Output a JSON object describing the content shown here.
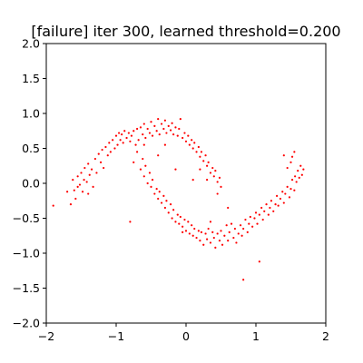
{
  "chart_data": {
    "type": "scatter",
    "title": "[failure] iter 300, learned threshold=0.200",
    "xlabel": "",
    "ylabel": "",
    "xlim": [
      -2,
      2
    ],
    "ylim": [
      -2,
      2
    ],
    "xticks": [
      -2,
      -1,
      0,
      1,
      2
    ],
    "xtick_labels": [
      "−2",
      "−1",
      "0",
      "1",
      "2"
    ],
    "yticks": [
      -2.0,
      -1.5,
      -1.0,
      -0.5,
      0.0,
      0.5,
      1.0,
      1.5,
      2.0
    ],
    "ytick_labels": [
      "−2.0",
      "−1.5",
      "−1.0",
      "−0.5",
      "0.0",
      "0.5",
      "1.0",
      "1.5",
      "2.0"
    ],
    "grid": false,
    "legend": false,
    "point_color": "#ff0000",
    "series": [
      {
        "values": [
          [
            -1.9,
            -0.32
          ],
          [
            -1.7,
            -0.12
          ],
          [
            -1.65,
            -0.3
          ],
          [
            -1.62,
            0.05
          ],
          [
            -1.6,
            -0.1
          ],
          [
            -1.58,
            -0.22
          ],
          [
            -1.55,
            -0.05
          ],
          [
            -1.55,
            0.1
          ],
          [
            -1.52,
            -0.02
          ],
          [
            -1.5,
            0.15
          ],
          [
            -1.48,
            -0.12
          ],
          [
            -1.46,
            0.05
          ],
          [
            -1.45,
            0.22
          ],
          [
            -1.42,
            0.02
          ],
          [
            -1.4,
            -0.15
          ],
          [
            -1.4,
            0.28
          ],
          [
            -1.38,
            0.12
          ],
          [
            -1.35,
            0.2
          ],
          [
            -1.33,
            -0.05
          ],
          [
            -1.3,
            0.35
          ],
          [
            -1.28,
            0.15
          ],
          [
            -1.25,
            0.42
          ],
          [
            -1.22,
            0.3
          ],
          [
            -1.2,
            0.48
          ],
          [
            -1.18,
            0.22
          ],
          [
            -1.15,
            0.52
          ],
          [
            -1.12,
            0.4
          ],
          [
            -1.1,
            0.58
          ],
          [
            -1.08,
            0.45
          ],
          [
            -1.05,
            0.62
          ],
          [
            -1.02,
            0.5
          ],
          [
            -1.0,
            0.68
          ],
          [
            -0.98,
            0.55
          ],
          [
            -0.96,
            0.72
          ],
          [
            -0.94,
            0.62
          ],
          [
            -0.92,
            0.7
          ],
          [
            -0.9,
            0.58
          ],
          [
            -0.88,
            0.75
          ],
          [
            -0.85,
            0.65
          ],
          [
            -0.82,
            0.72
          ],
          [
            -0.8,
            0.6
          ],
          [
            -0.78,
            0.68
          ],
          [
            -0.75,
            0.75
          ],
          [
            -0.72,
            0.55
          ],
          [
            -0.7,
            0.78
          ],
          [
            -0.68,
            0.62
          ],
          [
            -0.65,
            0.8
          ],
          [
            -0.62,
            0.7
          ],
          [
            -0.6,
            0.85
          ],
          [
            -0.58,
            0.65
          ],
          [
            -0.55,
            0.78
          ],
          [
            -0.52,
            0.72
          ],
          [
            -0.5,
            0.88
          ],
          [
            -0.48,
            0.68
          ],
          [
            -0.45,
            0.82
          ],
          [
            -0.42,
            0.75
          ],
          [
            -0.4,
            0.92
          ],
          [
            -0.38,
            0.7
          ],
          [
            -0.35,
            0.85
          ],
          [
            -0.32,
            0.78
          ],
          [
            -0.3,
            0.9
          ],
          [
            -0.28,
            0.72
          ],
          [
            -0.25,
            0.82
          ],
          [
            -0.22,
            0.76
          ],
          [
            -0.2,
            0.86
          ],
          [
            -0.18,
            0.7
          ],
          [
            -0.15,
            0.8
          ],
          [
            -0.12,
            0.68
          ],
          [
            -0.1,
            0.78
          ],
          [
            -0.08,
            0.92
          ],
          [
            -0.05,
            0.65
          ],
          [
            -0.02,
            0.72
          ],
          [
            0.0,
            0.6
          ],
          [
            0.03,
            0.68
          ],
          [
            0.05,
            0.55
          ],
          [
            0.08,
            0.62
          ],
          [
            0.1,
            0.5
          ],
          [
            0.12,
            0.58
          ],
          [
            0.15,
            0.45
          ],
          [
            0.18,
            0.52
          ],
          [
            0.2,
            0.38
          ],
          [
            0.22,
            0.45
          ],
          [
            0.25,
            0.32
          ],
          [
            0.28,
            0.4
          ],
          [
            0.3,
            0.25
          ],
          [
            0.32,
            0.3
          ],
          [
            0.35,
            0.15
          ],
          [
            0.38,
            0.22
          ],
          [
            0.4,
            0.1
          ],
          [
            0.42,
            0.18
          ],
          [
            0.45,
            0.02
          ],
          [
            0.48,
            0.08
          ],
          [
            0.5,
            -0.05
          ],
          [
            0.3,
            0.05
          ],
          [
            0.2,
            0.2
          ],
          [
            -0.75,
            0.3
          ],
          [
            -0.7,
            0.45
          ],
          [
            -0.65,
            0.2
          ],
          [
            -0.62,
            0.35
          ],
          [
            -0.6,
            0.1
          ],
          [
            -0.58,
            0.25
          ],
          [
            -0.55,
            0.0
          ],
          [
            -0.52,
            0.15
          ],
          [
            -0.5,
            -0.05
          ],
          [
            -0.48,
            0.05
          ],
          [
            -0.45,
            -0.15
          ],
          [
            -0.42,
            -0.08
          ],
          [
            -0.4,
            -0.22
          ],
          [
            -0.38,
            -0.12
          ],
          [
            -0.35,
            -0.28
          ],
          [
            -0.32,
            -0.18
          ],
          [
            -0.3,
            -0.35
          ],
          [
            -0.28,
            -0.25
          ],
          [
            -0.25,
            -0.42
          ],
          [
            -0.22,
            -0.3
          ],
          [
            -0.2,
            -0.5
          ],
          [
            -0.18,
            -0.38
          ],
          [
            -0.15,
            -0.55
          ],
          [
            -0.12,
            -0.45
          ],
          [
            -0.1,
            -0.58
          ],
          [
            -0.08,
            -0.48
          ],
          [
            -0.05,
            -0.62
          ],
          [
            -0.02,
            -0.52
          ],
          [
            0.0,
            -0.68
          ],
          [
            0.03,
            -0.55
          ],
          [
            0.05,
            -0.72
          ],
          [
            0.08,
            -0.6
          ],
          [
            0.1,
            -0.75
          ],
          [
            0.12,
            -0.65
          ],
          [
            0.15,
            -0.78
          ],
          [
            0.18,
            -0.68
          ],
          [
            0.2,
            -0.82
          ],
          [
            0.22,
            -0.7
          ],
          [
            0.25,
            -0.88
          ],
          [
            0.28,
            -0.72
          ],
          [
            0.3,
            -0.8
          ],
          [
            0.32,
            -0.65
          ],
          [
            0.35,
            -0.85
          ],
          [
            0.38,
            -0.7
          ],
          [
            0.4,
            -0.78
          ],
          [
            0.42,
            -0.92
          ],
          [
            0.45,
            -0.72
          ],
          [
            0.48,
            -0.82
          ],
          [
            0.5,
            -0.68
          ],
          [
            0.52,
            -0.88
          ],
          [
            0.55,
            -0.75
          ],
          [
            0.58,
            -0.6
          ],
          [
            0.6,
            -0.82
          ],
          [
            0.62,
            -0.7
          ],
          [
            0.65,
            -0.58
          ],
          [
            0.68,
            -0.78
          ],
          [
            0.7,
            -0.65
          ],
          [
            0.72,
            -0.85
          ],
          [
            0.75,
            -0.72
          ],
          [
            0.78,
            -0.6
          ],
          [
            0.8,
            -0.75
          ],
          [
            0.82,
            -0.65
          ],
          [
            0.85,
            -0.52
          ],
          [
            0.88,
            -0.7
          ],
          [
            0.9,
            -0.58
          ],
          [
            0.92,
            -0.48
          ],
          [
            0.95,
            -0.62
          ],
          [
            0.98,
            -0.5
          ],
          [
            1.0,
            -0.42
          ],
          [
            1.02,
            -0.58
          ],
          [
            1.05,
            -0.45
          ],
          [
            1.08,
            -0.35
          ],
          [
            1.1,
            -0.52
          ],
          [
            1.12,
            -0.4
          ],
          [
            1.15,
            -0.3
          ],
          [
            1.18,
            -0.45
          ],
          [
            1.2,
            -0.35
          ],
          [
            1.22,
            -0.25
          ],
          [
            1.25,
            -0.4
          ],
          [
            1.28,
            -0.3
          ],
          [
            1.3,
            -0.18
          ],
          [
            1.32,
            -0.32
          ],
          [
            1.35,
            -0.22
          ],
          [
            1.38,
            -0.12
          ],
          [
            1.4,
            -0.28
          ],
          [
            1.42,
            -0.15
          ],
          [
            1.45,
            -0.05
          ],
          [
            1.48,
            -0.2
          ],
          [
            1.5,
            -0.08
          ],
          [
            1.52,
            0.05
          ],
          [
            1.55,
            -0.1
          ],
          [
            1.56,
            0.1
          ],
          [
            1.58,
            0.02
          ],
          [
            1.6,
            0.18
          ],
          [
            1.62,
            0.08
          ],
          [
            1.64,
            0.25
          ],
          [
            1.66,
            0.12
          ],
          [
            1.68,
            0.2
          ],
          [
            1.55,
            0.45
          ],
          [
            1.52,
            0.38
          ],
          [
            1.5,
            0.3
          ],
          [
            1.45,
            0.22
          ],
          [
            1.4,
            0.4
          ],
          [
            -0.6,
            0.55
          ],
          [
            -0.8,
            -0.55
          ],
          [
            0.82,
            -1.38
          ],
          [
            1.05,
            -1.12
          ],
          [
            -0.05,
            -0.7
          ],
          [
            0.35,
            -0.55
          ],
          [
            -0.3,
            0.55
          ],
          [
            -0.15,
            0.2
          ],
          [
            0.1,
            0.05
          ],
          [
            -0.4,
            0.4
          ],
          [
            0.6,
            -0.35
          ],
          [
            0.45,
            -0.15
          ]
        ]
      }
    ]
  }
}
